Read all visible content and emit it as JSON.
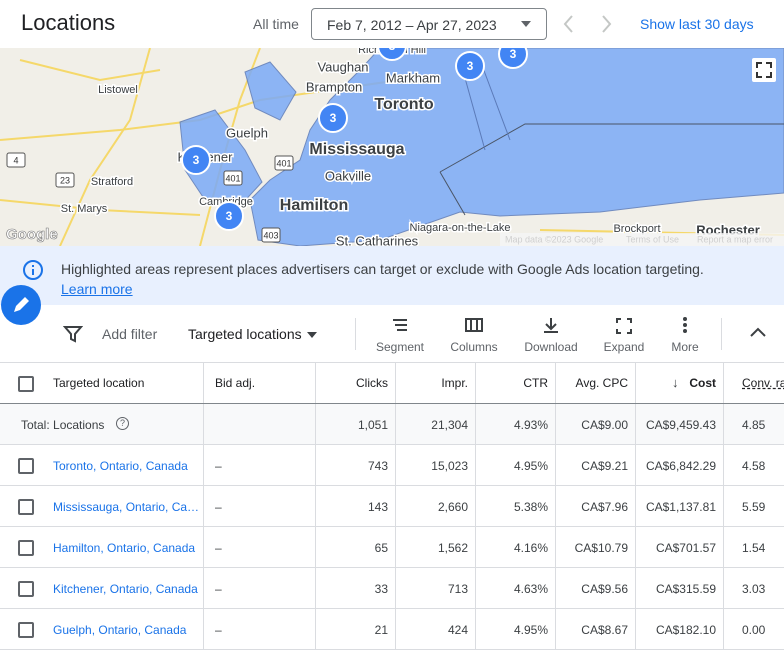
{
  "header": {
    "title": "Locations",
    "range_label": "All time",
    "date_range": "Feb 7, 2012 – Apr 27, 2023",
    "show_last": "Show last 30 days"
  },
  "map": {
    "labels": [
      "Richmond Hill",
      "Vaughan",
      "Markham",
      "Listowel",
      "Brampton",
      "Toronto",
      "Guelph",
      "Mississauga",
      "Kitchener",
      "Oakville",
      "Stratford",
      "St. Marys",
      "Cambridge",
      "Hamilton",
      "Niagara-on-the-Lake",
      "Brockport",
      "Rochester",
      "St. Catharines"
    ],
    "roads": [
      "4",
      "23",
      "401",
      "401",
      "403"
    ],
    "clusters": [
      "3",
      "3",
      "3",
      "3",
      "3",
      "3"
    ],
    "attribution": {
      "logo": "Google",
      "data": "Map data ©2023 Google",
      "terms": "Terms of Use",
      "report": "Report a map error"
    }
  },
  "banner": {
    "text": "Highlighted areas represent places advertisers can target or exclude with Google Ads location targeting.",
    "link": "Learn more"
  },
  "toolbar": {
    "add_filter": "Add filter",
    "view": "Targeted locations",
    "actions": [
      "Segment",
      "Columns",
      "Download",
      "Expand",
      "More"
    ]
  },
  "table": {
    "columns": [
      "Targeted location",
      "Bid adj.",
      "Clicks",
      "Impr.",
      "CTR",
      "Avg. CPC",
      "Cost",
      "Conv. ra"
    ],
    "total": {
      "label": "Total: Locations",
      "values": [
        "1,051",
        "21,304",
        "4.93%",
        "CA$9.00",
        "CA$9,459.43",
        "4.85"
      ]
    },
    "rows": [
      [
        "Toronto, Ontario, Canada",
        "–",
        "743",
        "15,023",
        "4.95%",
        "CA$9.21",
        "CA$6,842.29",
        "4.58"
      ],
      [
        "Mississauga, Ontario, Ca…",
        "–",
        "143",
        "2,660",
        "5.38%",
        "CA$7.96",
        "CA$1,137.81",
        "5.59"
      ],
      [
        "Hamilton, Ontario, Canada",
        "–",
        "65",
        "1,562",
        "4.16%",
        "CA$10.79",
        "CA$701.57",
        "1.54"
      ],
      [
        "Kitchener, Ontario, Canada",
        "–",
        "33",
        "713",
        "4.63%",
        "CA$9.56",
        "CA$315.59",
        "3.03"
      ],
      [
        "Guelph, Ontario, Canada",
        "–",
        "21",
        "424",
        "4.95%",
        "CA$8.67",
        "CA$182.10",
        "0.00"
      ]
    ]
  }
}
